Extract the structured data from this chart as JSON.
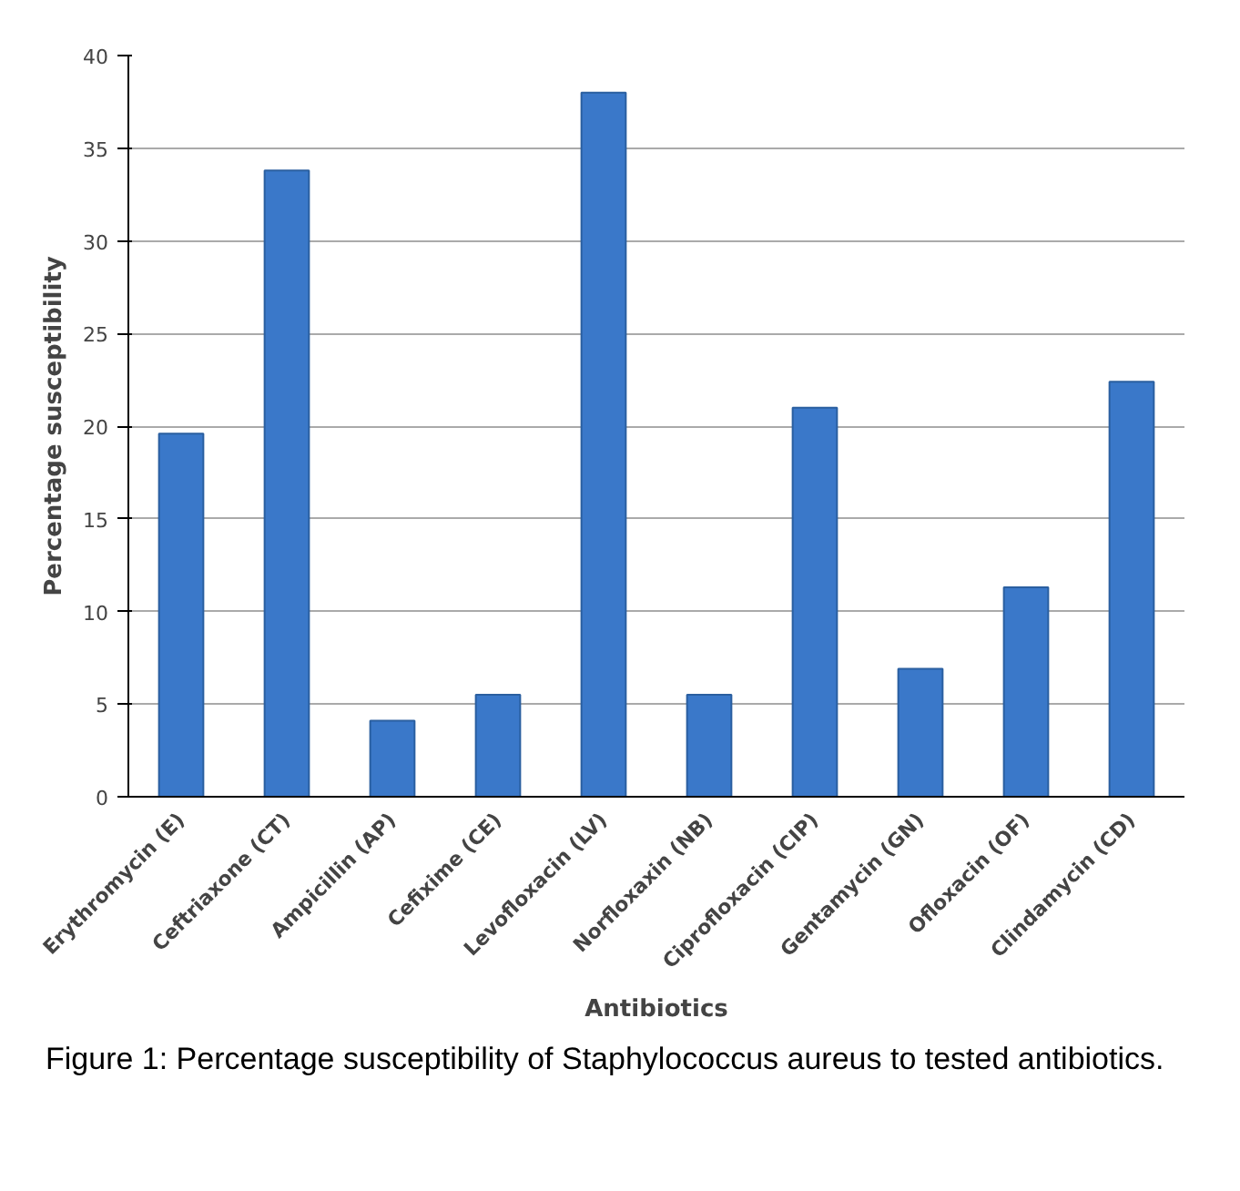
{
  "chart_data": {
    "type": "bar",
    "xlabel": "Antibiotics",
    "ylabel": "Percentage susceptibility",
    "categories": [
      "Erythromycin (E)",
      "Ceftriaxone (CT)",
      "Ampicillin (AP)",
      "Cefixime (CE)",
      "Levofloxacin (LV)",
      "Norfloxaxin (NB)",
      "Ciprofloxacin (CIP)",
      "Gentamycin (GN)",
      "Ofloxacin (OF)",
      "Clindamycin (CD)"
    ],
    "values": [
      19.6,
      33.8,
      4.1,
      5.5,
      38.0,
      5.5,
      21.0,
      6.9,
      11.3,
      22.4
    ],
    "color": "#3a78c9",
    "ylim": [
      0,
      40
    ],
    "yticks": [
      0,
      5,
      10,
      15,
      20,
      25,
      30,
      35,
      40
    ],
    "grid": "y",
    "annotations": [
      "Figure 1: Percentage susceptibility of Staphylococcus aureus to tested antibiotics."
    ]
  }
}
